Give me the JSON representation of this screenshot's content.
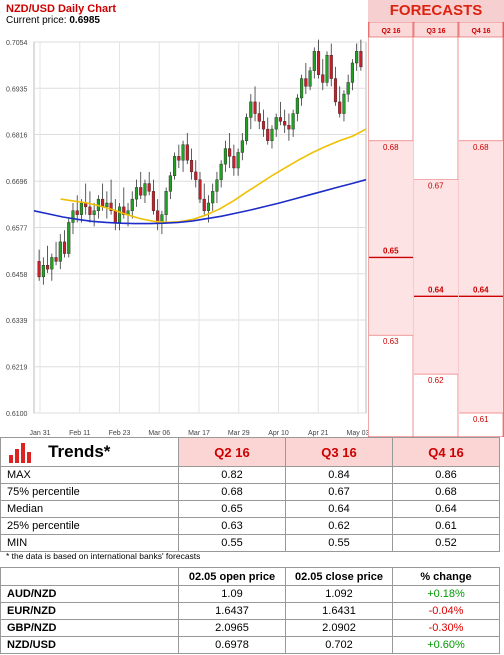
{
  "header": {
    "title": "NZD/USD Daily Chart",
    "current_label": "Current price:",
    "current_price": "0.6985"
  },
  "forecasts": {
    "title": "FORECASTS",
    "columns": [
      "Q2 16",
      "Q3 16",
      "Q4 16"
    ],
    "levels": {
      "q2": [
        0.68,
        0.65,
        0.63
      ],
      "q3": [
        0.67,
        0.64,
        0.62
      ],
      "q4": [
        0.68,
        0.64,
        0.61
      ]
    },
    "labels": {
      "q2": [
        "0.68",
        "0.65",
        "0.63"
      ],
      "q3": [
        "0.67",
        "0.64",
        "0.62"
      ],
      "q4": [
        "0.68",
        "0.64",
        "0.61"
      ]
    },
    "median_labels": [
      "0.65",
      "0.64",
      "0.64"
    ]
  },
  "chart_data": {
    "type": "candlestick",
    "title": "NZD/USD Daily Chart",
    "y_ticks": [
      "0.7054",
      "0.6935",
      "0.6816",
      "0.6696",
      "0.6577",
      "0.6458",
      "0.6339",
      "0.6219",
      "0.6100"
    ],
    "ylim": [
      0.61,
      0.7054
    ],
    "x_ticks": [
      "Jan 31",
      "Feb 11",
      "Feb 23",
      "Mar 06",
      "Mar 17",
      "Mar 29",
      "Apr 10",
      "Apr 21",
      "May 03"
    ],
    "colors": {
      "up": "#22a022",
      "down": "#c8202a",
      "ma_fast": "#f0c000",
      "ma_slow": "#1c2cc8"
    },
    "candles": [
      [
        0.649,
        0.652,
        0.644,
        0.645
      ],
      [
        0.645,
        0.65,
        0.643,
        0.648
      ],
      [
        0.648,
        0.653,
        0.646,
        0.647
      ],
      [
        0.647,
        0.651,
        0.644,
        0.65
      ],
      [
        0.65,
        0.654,
        0.648,
        0.649
      ],
      [
        0.649,
        0.656,
        0.647,
        0.654
      ],
      [
        0.654,
        0.657,
        0.65,
        0.651
      ],
      [
        0.651,
        0.66,
        0.65,
        0.659
      ],
      [
        0.659,
        0.664,
        0.656,
        0.662
      ],
      [
        0.662,
        0.666,
        0.659,
        0.661
      ],
      [
        0.661,
        0.665,
        0.659,
        0.664
      ],
      [
        0.664,
        0.669,
        0.661,
        0.663
      ],
      [
        0.663,
        0.667,
        0.659,
        0.661
      ],
      [
        0.661,
        0.664,
        0.658,
        0.662
      ],
      [
        0.662,
        0.666,
        0.66,
        0.665
      ],
      [
        0.665,
        0.669,
        0.662,
        0.663
      ],
      [
        0.663,
        0.667,
        0.66,
        0.664
      ],
      [
        0.664,
        0.67,
        0.661,
        0.662
      ],
      [
        0.662,
        0.665,
        0.657,
        0.659
      ],
      [
        0.659,
        0.664,
        0.657,
        0.663
      ],
      [
        0.663,
        0.668,
        0.66,
        0.661
      ],
      [
        0.661,
        0.664,
        0.658,
        0.662
      ],
      [
        0.662,
        0.667,
        0.66,
        0.665
      ],
      [
        0.665,
        0.67,
        0.663,
        0.668
      ],
      [
        0.668,
        0.672,
        0.665,
        0.666
      ],
      [
        0.666,
        0.67,
        0.664,
        0.669
      ],
      [
        0.669,
        0.672,
        0.666,
        0.667
      ],
      [
        0.667,
        0.67,
        0.661,
        0.662
      ],
      [
        0.662,
        0.665,
        0.657,
        0.659
      ],
      [
        0.659,
        0.662,
        0.656,
        0.661
      ],
      [
        0.661,
        0.668,
        0.659,
        0.667
      ],
      [
        0.667,
        0.672,
        0.665,
        0.671
      ],
      [
        0.671,
        0.677,
        0.67,
        0.676
      ],
      [
        0.676,
        0.679,
        0.673,
        0.675
      ],
      [
        0.675,
        0.68,
        0.672,
        0.679
      ],
      [
        0.679,
        0.682,
        0.674,
        0.675
      ],
      [
        0.675,
        0.678,
        0.67,
        0.672
      ],
      [
        0.672,
        0.675,
        0.668,
        0.67
      ],
      [
        0.67,
        0.672,
        0.664,
        0.665
      ],
      [
        0.665,
        0.669,
        0.661,
        0.662
      ],
      [
        0.662,
        0.666,
        0.659,
        0.664
      ],
      [
        0.664,
        0.669,
        0.662,
        0.667
      ],
      [
        0.667,
        0.672,
        0.664,
        0.67
      ],
      [
        0.67,
        0.675,
        0.668,
        0.674
      ],
      [
        0.674,
        0.68,
        0.672,
        0.678
      ],
      [
        0.678,
        0.682,
        0.673,
        0.676
      ],
      [
        0.676,
        0.679,
        0.671,
        0.673
      ],
      [
        0.673,
        0.678,
        0.671,
        0.677
      ],
      [
        0.677,
        0.682,
        0.675,
        0.68
      ],
      [
        0.68,
        0.687,
        0.679,
        0.686
      ],
      [
        0.686,
        0.692,
        0.683,
        0.69
      ],
      [
        0.69,
        0.694,
        0.685,
        0.687
      ],
      [
        0.687,
        0.69,
        0.683,
        0.685
      ],
      [
        0.685,
        0.688,
        0.681,
        0.683
      ],
      [
        0.683,
        0.686,
        0.679,
        0.68
      ],
      [
        0.68,
        0.684,
        0.678,
        0.683
      ],
      [
        0.683,
        0.687,
        0.681,
        0.686
      ],
      [
        0.686,
        0.69,
        0.684,
        0.685
      ],
      [
        0.685,
        0.688,
        0.682,
        0.684
      ],
      [
        0.684,
        0.687,
        0.68,
        0.683
      ],
      [
        0.683,
        0.688,
        0.681,
        0.687
      ],
      [
        0.687,
        0.692,
        0.685,
        0.691
      ],
      [
        0.691,
        0.697,
        0.689,
        0.696
      ],
      [
        0.696,
        0.7,
        0.692,
        0.694
      ],
      [
        0.694,
        0.699,
        0.693,
        0.698
      ],
      [
        0.698,
        0.704,
        0.696,
        0.703
      ],
      [
        0.703,
        0.706,
        0.696,
        0.697
      ],
      [
        0.697,
        0.701,
        0.693,
        0.695
      ],
      [
        0.695,
        0.703,
        0.694,
        0.702
      ],
      [
        0.702,
        0.705,
        0.694,
        0.696
      ],
      [
        0.696,
        0.699,
        0.689,
        0.69
      ],
      [
        0.69,
        0.694,
        0.686,
        0.687
      ],
      [
        0.687,
        0.693,
        0.685,
        0.692
      ],
      [
        0.692,
        0.697,
        0.69,
        0.695
      ],
      [
        0.695,
        0.701,
        0.693,
        0.7
      ],
      [
        0.7,
        0.705,
        0.698,
        0.703
      ],
      [
        0.703,
        0.706,
        0.698,
        0.699
      ]
    ],
    "ma_fast": [
      0.665,
      0.6645,
      0.664,
      0.6632,
      0.6622,
      0.661,
      0.66,
      0.6593,
      0.659,
      0.6592,
      0.6598,
      0.661,
      0.6625,
      0.6645,
      0.6668,
      0.669,
      0.6712,
      0.6732,
      0.6752,
      0.677,
      0.6786,
      0.68,
      0.6812,
      0.683
    ],
    "ma_slow": [
      0.662,
      0.6612,
      0.6604,
      0.6598,
      0.6593,
      0.659,
      0.6588,
      0.6587,
      0.6587,
      0.6588,
      0.659,
      0.6594,
      0.66,
      0.6606,
      0.6614,
      0.6622,
      0.6631,
      0.664,
      0.665,
      0.666,
      0.667,
      0.668,
      0.669,
      0.67
    ]
  },
  "trends": {
    "title": "Trends*",
    "columns": [
      "Q2 16",
      "Q3 16",
      "Q4 16"
    ],
    "rows": [
      {
        "label": "MAX",
        "values": [
          "0.82",
          "0.84",
          "0.86"
        ]
      },
      {
        "label": "75% percentile",
        "values": [
          "0.68",
          "0.67",
          "0.68"
        ]
      },
      {
        "label": "Median",
        "values": [
          "0.65",
          "0.64",
          "0.64"
        ]
      },
      {
        "label": "25% percentile",
        "values": [
          "0.63",
          "0.62",
          "0.61"
        ]
      },
      {
        "label": "MIN",
        "values": [
          "0.55",
          "0.55",
          "0.52"
        ]
      }
    ],
    "footnote": "* the data is based on international banks' forecasts"
  },
  "prices": {
    "columns": [
      "02.05 open price",
      "02.05 close price",
      "% change"
    ],
    "rows": [
      {
        "pair": "AUD/NZD",
        "open": "1.09",
        "close": "1.092",
        "change": "+0.18%",
        "positive": true
      },
      {
        "pair": "EUR/NZD",
        "open": "1.6437",
        "close": "1.6431",
        "change": "-0.04%",
        "positive": false
      },
      {
        "pair": "GBP/NZD",
        "open": "2.0965",
        "close": "2.0902",
        "change": "-0.30%",
        "positive": false
      },
      {
        "pair": "NZD/USD",
        "open": "0.6978",
        "close": "0.702",
        "change": "+0.60%",
        "positive": true
      }
    ]
  }
}
